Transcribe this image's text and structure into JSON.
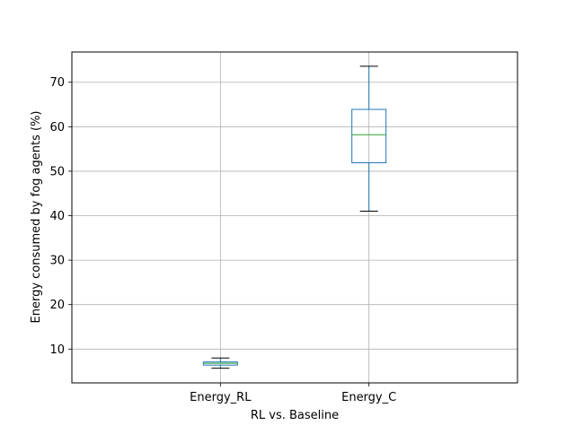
{
  "chart_data": {
    "type": "boxplot",
    "title": "",
    "xlabel": "RL vs. Baseline",
    "ylabel": "Energy consumed by fog agents (%)",
    "ylim": [
      2.4,
      76.8
    ],
    "yticks": [
      10,
      20,
      30,
      40,
      50,
      60,
      70
    ],
    "grid": true,
    "categories": [
      "Energy_RL",
      "Energy_C"
    ],
    "boxes": [
      {
        "label": "Energy_RL",
        "whisker_low": 5.7,
        "q1": 6.4,
        "median": 6.8,
        "q3": 7.1,
        "whisker_high": 8.0
      },
      {
        "label": "Energy_C",
        "whisker_low": 41.0,
        "q1": 51.9,
        "median": 58.2,
        "q3": 63.9,
        "whisker_high": 73.6
      }
    ],
    "colors": {
      "box": "#1f77b4",
      "median": "#2ca02c",
      "whisker": "#000000",
      "grid": "#b0b0b0"
    }
  }
}
